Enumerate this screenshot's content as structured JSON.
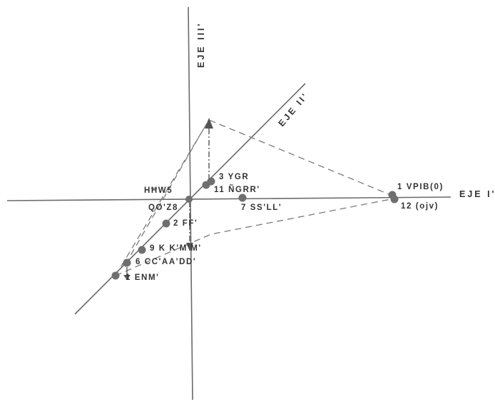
{
  "axes": {
    "axis_1": "EJE I'",
    "axis_2": "EJE II'",
    "axis_3": "EJE III'"
  },
  "labels": {
    "p3": "3 YGR",
    "p11": "11 ÑGRR'",
    "hhw5": "HĦW5",
    "qoz8": "QO'Z8",
    "p7": "7 SS'LL'",
    "p2": "2 FF'",
    "p9": "9 K K'M'M'",
    "p6": "6 CC'AA'DD'",
    "p1_left": "1 ENM'",
    "p1_right": "1 VPIB(0)",
    "p12": "12 (ojv)"
  }
}
